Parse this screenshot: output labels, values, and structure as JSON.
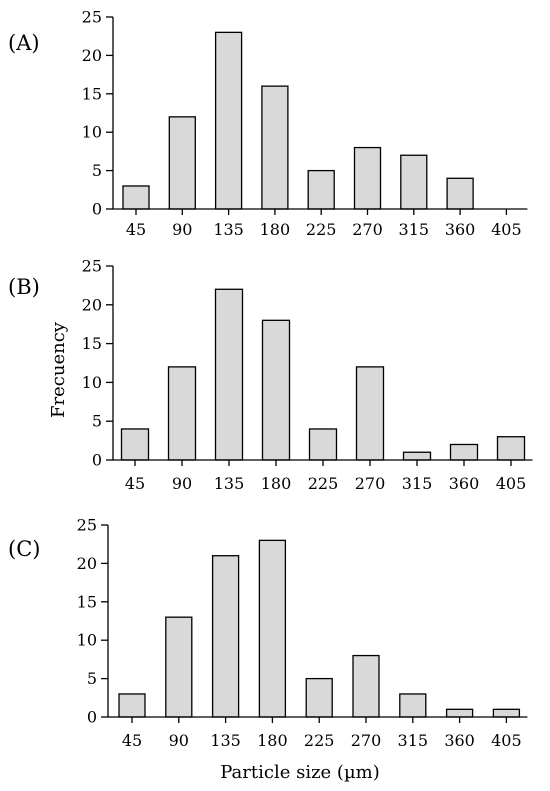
{
  "chart_data": [
    {
      "type": "bar",
      "panel_label": "(A)",
      "categories": [
        "45",
        "90",
        "135",
        "180",
        "225",
        "270",
        "315",
        "360",
        "405"
      ],
      "values": [
        3,
        12,
        23,
        16,
        5,
        8,
        7,
        4,
        0
      ],
      "yticks": [
        "0",
        "5",
        "10",
        "15",
        "20",
        "25"
      ],
      "ylim": [
        0,
        25
      ],
      "grid": false
    },
    {
      "type": "bar",
      "panel_label": "(B)",
      "categories": [
        "45",
        "90",
        "135",
        "180",
        "225",
        "270",
        "315",
        "360",
        "405"
      ],
      "values": [
        4,
        12,
        22,
        18,
        4,
        12,
        1,
        2,
        3
      ],
      "yticks": [
        "0",
        "5",
        "10",
        "15",
        "20",
        "25"
      ],
      "ylim": [
        0,
        25
      ],
      "grid": false
    },
    {
      "type": "bar",
      "panel_label": "(C)",
      "categories": [
        "45",
        "90",
        "135",
        "180",
        "225",
        "270",
        "315",
        "360",
        "405"
      ],
      "values": [
        3,
        13,
        21,
        23,
        5,
        8,
        3,
        1,
        1
      ],
      "yticks": [
        "0",
        "5",
        "10",
        "15",
        "20",
        "25"
      ],
      "ylim": [
        0,
        25
      ],
      "grid": false
    }
  ],
  "ylabel": "Frecuency",
  "xlabel": "Particle size (µm)"
}
